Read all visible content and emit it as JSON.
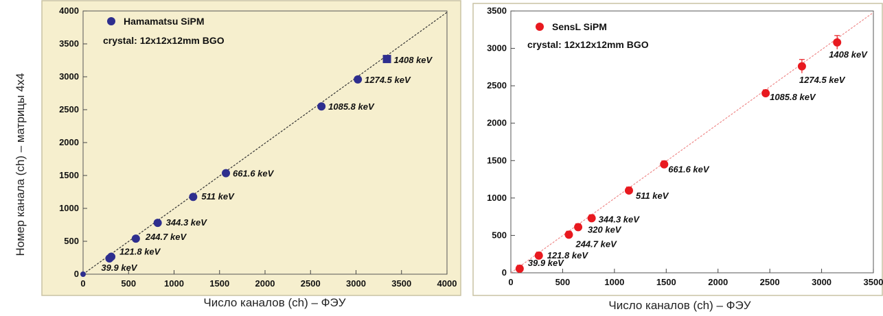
{
  "y_axis_label": "Номер канала (ch) – матрицы 4х4",
  "chart_data": [
    {
      "type": "scatter",
      "legend": "Hamamatsu SiPM",
      "subtitle": "crystal: 12x12x12mm BGO",
      "xlabel": "Число каналов (ch) – ФЭУ",
      "xlim": [
        0,
        4000
      ],
      "ylim": [
        0,
        4000
      ],
      "xticks": [
        0,
        500,
        1000,
        1500,
        2000,
        2500,
        3000,
        3500,
        4000
      ],
      "yticks": [
        0,
        500,
        1000,
        1500,
        2000,
        2500,
        3000,
        3500,
        4000
      ],
      "marker_color": "#2e2e8e",
      "line_color": "#333333",
      "fit_line": [
        [
          0,
          0
        ],
        [
          4000,
          3980
        ]
      ],
      "points": [
        {
          "x": 0,
          "y": 0,
          "label": ""
        },
        {
          "x": 290,
          "y": 240,
          "label": "39.9 keV"
        },
        {
          "x": 310,
          "y": 265,
          "label": "121.8 keV"
        },
        {
          "x": 580,
          "y": 540,
          "label": "244.7 keV"
        },
        {
          "x": 820,
          "y": 780,
          "label": "344.3 keV"
        },
        {
          "x": 1210,
          "y": 1175,
          "label": "511 keV"
        },
        {
          "x": 1570,
          "y": 1535,
          "label": "661.6 keV"
        },
        {
          "x": 2620,
          "y": 2550,
          "label": "1085.8 keV"
        },
        {
          "x": 3020,
          "y": 2960,
          "label": "1274.5 keV"
        },
        {
          "x": 3340,
          "y": 3270,
          "label": "1408 keV"
        }
      ]
    },
    {
      "type": "scatter",
      "legend": "SensL SiPM",
      "subtitle": "crystal:  12x12x12mm BGO",
      "xlabel": "Число каналов (ch) – ФЭУ",
      "xlim": [
        0,
        3500
      ],
      "ylim": [
        0,
        3500
      ],
      "xticks": [
        0,
        500,
        1000,
        1500,
        2000,
        2500,
        3000,
        3500
      ],
      "yticks": [
        0,
        500,
        1000,
        1500,
        2000,
        2500,
        3000,
        3500
      ],
      "marker_color": "#e8191f",
      "line_color": "#ef8a8a",
      "fit_line": [
        [
          0,
          0
        ],
        [
          3500,
          3480
        ]
      ],
      "points": [
        {
          "x": 85,
          "y": 55,
          "label": "39.9 keV"
        },
        {
          "x": 270,
          "y": 230,
          "label": "121.8 keV"
        },
        {
          "x": 560,
          "y": 510,
          "label": "244.7 keV"
        },
        {
          "x": 650,
          "y": 610,
          "label": "320 keV"
        },
        {
          "x": 780,
          "y": 730,
          "label": "344.3 keV"
        },
        {
          "x": 1140,
          "y": 1100,
          "label": "511 keV"
        },
        {
          "x": 1480,
          "y": 1450,
          "label": "661.6 keV"
        },
        {
          "x": 2460,
          "y": 2400,
          "label": "1085.8 keV"
        },
        {
          "x": 2810,
          "y": 2760,
          "label": "1274.5 keV"
        },
        {
          "x": 3150,
          "y": 3080,
          "label": "1408 keV"
        }
      ]
    }
  ]
}
